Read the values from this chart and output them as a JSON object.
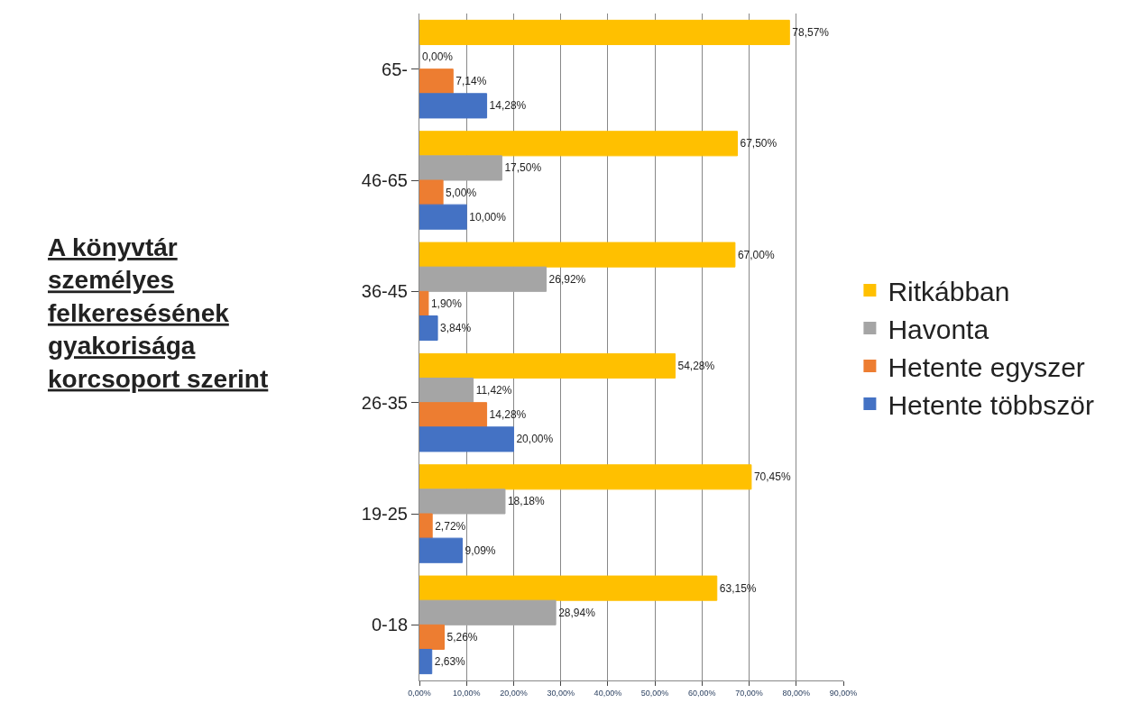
{
  "chart_data": {
    "type": "bar",
    "orientation": "horizontal",
    "title": "A könyvtár személyes felkeresésének gyakorisága korcsoport szerint",
    "categories": [
      "65-",
      "46-65",
      "36-45",
      "26-35",
      "19-25",
      "0-18"
    ],
    "series": [
      {
        "name": "Ritkábban",
        "color": "#ffc000",
        "values": [
          78.57,
          67.5,
          67.0,
          54.28,
          70.45,
          63.15
        ],
        "value_labels": [
          "78,57%",
          "67,50%",
          "67,00%",
          "54,28%",
          "70,45%",
          "63,15%"
        ]
      },
      {
        "name": "Havonta",
        "color": "#a5a5a5",
        "values": [
          0.0,
          17.5,
          26.92,
          11.42,
          18.18,
          28.94
        ],
        "value_labels": [
          "0,00%",
          "17,50%",
          "26,92%",
          "11,42%",
          "18,18%",
          "28,94%"
        ]
      },
      {
        "name": "Hetente egyszer",
        "color": "#ed7d31",
        "values": [
          7.14,
          5.0,
          1.9,
          14.28,
          2.72,
          5.26
        ],
        "value_labels": [
          "7,14%",
          "5,00%",
          "1,90%",
          "14,28%",
          "2,72%",
          "5,26%"
        ]
      },
      {
        "name": "Hetente többször",
        "color": "#4472c4",
        "values": [
          14.28,
          10.0,
          3.84,
          20.0,
          9.09,
          2.63
        ],
        "value_labels": [
          "14,28%",
          "10,00%",
          "3,84%",
          "20,00%",
          "9,09%",
          "2,63%"
        ]
      }
    ],
    "xlim": [
      0,
      90
    ],
    "xticks": [
      {
        "value": 0,
        "label": "0,00%"
      },
      {
        "value": 10,
        "label": "10,00%"
      },
      {
        "value": 20,
        "label": "20,00%"
      },
      {
        "value": 30,
        "label": "30,00%"
      },
      {
        "value": 40,
        "label": "40,00%"
      },
      {
        "value": 50,
        "label": "50,00%"
      },
      {
        "value": 60,
        "label": "60,00%"
      },
      {
        "value": 70,
        "label": "70,00%"
      },
      {
        "value": 80,
        "label": "80,00%"
      },
      {
        "value": 90,
        "label": "90,00%"
      }
    ],
    "grid": "x",
    "legend": "right"
  }
}
